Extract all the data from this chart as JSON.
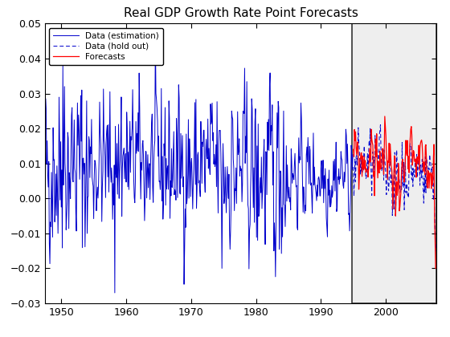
{
  "title": "Real GDP Growth Rate Point Forecasts",
  "xlim": [
    1947.5,
    2007.8
  ],
  "ylim": [
    -0.03,
    0.05
  ],
  "xticks": [
    1950,
    1960,
    1970,
    1980,
    1990,
    2000
  ],
  "yticks": [
    -0.03,
    -0.02,
    -0.01,
    0,
    0.01,
    0.02,
    0.03,
    0.04,
    0.05
  ],
  "estimation_color": "#0000cc",
  "holdout_color": "#0000cc",
  "forecast_color": "#ff0000",
  "shading_color": "#eeeeee",
  "shading_edgecolor": "#333333",
  "split_year": 1994.75,
  "end_year": 2007.8,
  "legend_labels": [
    "Data (estimation)",
    "Data (hold out)",
    "Forecasts"
  ],
  "title_fontsize": 11,
  "figsize": [
    5.6,
    4.2
  ],
  "dpi": 100
}
